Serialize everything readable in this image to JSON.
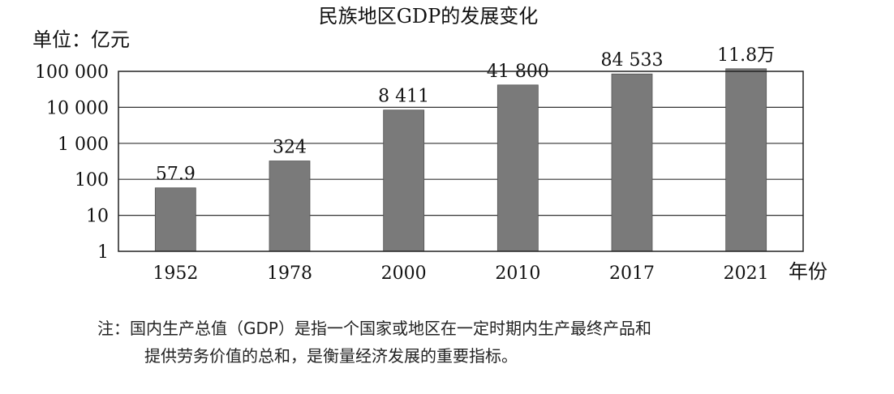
{
  "chart_data": {
    "type": "bar",
    "title": "民族地区GDP的发展变化",
    "ylabel": "单位：亿元",
    "xlabel": "年份",
    "yscale": "log",
    "ylim": [
      1,
      100000
    ],
    "yticks": [
      {
        "value": 1,
        "label": "1"
      },
      {
        "value": 10,
        "label": "10"
      },
      {
        "value": 100,
        "label": "100"
      },
      {
        "value": 1000,
        "label": "1 000"
      },
      {
        "value": 10000,
        "label": "10 000"
      },
      {
        "value": 100000,
        "label": "100 000"
      }
    ],
    "categories": [
      "1952",
      "1978",
      "2000",
      "2010",
      "2017",
      "2021"
    ],
    "values": [
      57.9,
      324,
      8411,
      41800,
      84533,
      118000
    ],
    "data_labels": [
      "57.9",
      "324",
      "8 411",
      "41 800",
      "84 533",
      "11.8万"
    ],
    "grid": "horizontal",
    "bar_color": "#7a7a7a"
  },
  "notes": {
    "line1": "注：国内生产总值（GDP）是指一个国家或地区在一定时期内生产最终产品和",
    "line2": "提供劳务价值的总和，是衡量经济发展的重要指标。"
  }
}
